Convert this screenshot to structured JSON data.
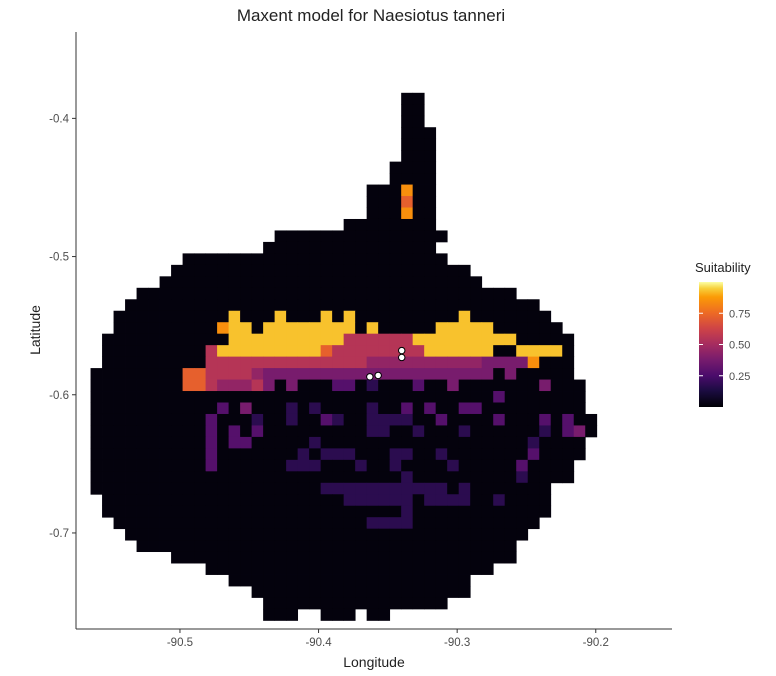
{
  "chart_data": {
    "type": "heatmap",
    "title": "Maxent model for Naesiotus tanneri",
    "xlabel": "Longitude",
    "ylabel": "Latitude",
    "xlim": [
      -90.575,
      -90.145
    ],
    "ylim": [
      -0.7695,
      -0.3375
    ],
    "x_ticks": [
      -90.5,
      -90.4,
      -90.3,
      -90.2
    ],
    "x_tick_labels": [
      "-90.5",
      "-90.4",
      "-90.3",
      "-90.2"
    ],
    "y_ticks": [
      -0.4,
      -0.5,
      -0.6,
      -0.7
    ],
    "y_tick_labels": [
      "-0.4",
      "-0.5",
      "-0.6",
      "-0.7"
    ],
    "grid": false,
    "legend": {
      "title": "Suitability",
      "position": "right",
      "colormap": "inferno",
      "range": [
        0,
        1
      ],
      "breaks": [
        0.25,
        0.5,
        0.75
      ],
      "break_labels": [
        "0.25",
        "0.50",
        "0.75"
      ]
    },
    "grid_info": {
      "cell_size_deg": 0.0083,
      "x_start": -90.5645,
      "y_start": -0.3815,
      "cols": 50,
      "rows": 46
    },
    "rows": [
      "...........................XX.....................",
      "...........................XX.....................",
      "...........................XX.....................",
      "...........................XXX....................",
      "...........................XXX....................",
      "...........................XXX....................",
      "..........................XXXX....................",
      "..........................XXXX....................",
      "........................XXX8XX....................",
      "........................XXX7XX....................",
      "........................XXX8XX....................",
      "......................XXXXXXXX....................",
      "................XXXXXXXXXXXXXXX...................",
      "...............XXXXXXXXXXXXXXX....................",
      "........XXXXXXXXXXXXXXXXXXXXXXX...................",
      ".......XXXXXXXXXXXXXXXXXXXXXXXXXX.................",
      "......XXXXXXXXXXXXXXXXXXXXXXXXXXXX................",
      "....XXXXXXXXXXXXXXXXXXXXXXXXXXXXXXXXX.............",
      "...XXXXXXXXXXXXXXXXXXXXXXXXXXXXXXXXXXXX...........",
      "..XXXXXXXXXX9XXX9XXX9X9XXXXXXXXX9XXXXXXX..........",
      "..XXXXXXXXX899X99999999X9XXXXX99999XXXXXX.........",
      ".XXXXXXXXXXX9999999999666666999999999XXXXX........",
      ".XXXXXXXXX6999999999766666666999999XX9999X........",
      ".XXXXXXXXX66666666666666555555555544448XXX........",
      "XXXXXXXX776666544444444444444444444X4XXXXX........",
      "XXXXXXXX77655564X4XXX33X2XXX3XX4XXXXXXX4XXX.......",
      "XXXXXXXXXXXXXXXXXXXXXXXXXXXXXXXXXXX3XXXXXXX.......",
      "XXXXXXXXXXX3X4XXX2X2XXXX2XX3X3XX33XXXXXXXXX.......",
      "XXXXXXXXXX3XXX2XX2XX32XX2222XX3XXXX3XXX3X3XX......",
      "XXXXXXXXXX3X3X3XXXXXXXXX22XX2XXX2XXXXXX2X34X......",
      "XXXXXXXXXX3X33XXXXX2XXXXXXXXXXXXXXXXXX2XXXX.......",
      "XXXXXXXXXX3XXXXXXX2X222XXX22XX2XXXXXXX3XXXX.......",
      "XXXXXXXXXX3XXXXXX222XXX2XX2XXXX2XXXXX3XXXX........",
      "XXXXXXXXXXXXXXXXXXXXXXXXXXX2XXXXXXXXX2XXXX........",
      "XXXXXXXXXXXXXXXXXXXX22222222222X2XXXXXXX..........",
      ".XXXXXXXXXXXXXXXXXXXXX222222X2222XX2XXXX..........",
      ".XXXXXXXXXXXXXXXXXXXXXXXXXX2XXXXXXXXXXXX..........",
      "..XXXXXXXXXXXXXXXXXXXXXX2222XXXXXXXXXXX...........",
      "...XXXXXXXXXXXXXXXXXXXXXXXXXXXXXXXXXXX............",
      "....XXXXXXXXXXXXXXXXXXXXXXXXXXXXXXXXX.............",
      ".......XXXXXXXXXXXXXXXXXXXXXXXXXXXXXX.............",
      "..........XXXXXXXXXXXXXXXXXXXXXXXXX...............",
      "............XXXXXXXXXXXXXXXXXXXXX.................",
      "..............XXXXXXXXXXXXXXXXXXX.................",
      "...............XXXXXXXXXXXXXXXX...................",
      "...............XXX..XXX.XX........................"
    ],
    "value_scale": {
      "X": 0.02,
      "2": 0.17,
      "3": 0.28,
      "4": 0.38,
      "5": 0.45,
      "6": 0.55,
      "7": 0.72,
      "8": 0.85,
      "9": 0.93,
      ".": null
    },
    "occurrence_points": [
      {
        "x": -90.363,
        "y": -0.587
      },
      {
        "x": -90.357,
        "y": -0.586
      },
      {
        "x": -90.34,
        "y": -0.568
      },
      {
        "x": -90.34,
        "y": -0.573
      }
    ]
  }
}
